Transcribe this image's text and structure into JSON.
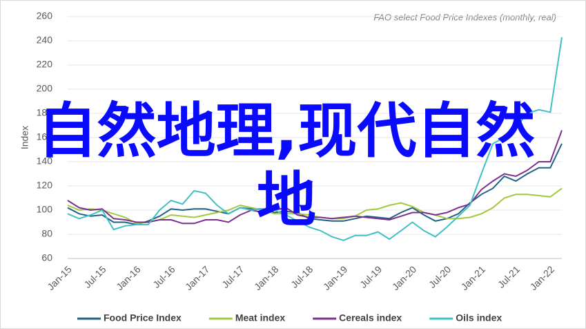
{
  "chart_data": {
    "type": "line",
    "title": "FAO select Food Price Indexes (monthly, real)",
    "y_label": "Index",
    "categories": [
      "Jan-15",
      null,
      null,
      "Jul-15",
      null,
      null,
      "Jan-16",
      null,
      null,
      "Jul-16",
      null,
      null,
      "Jan-17",
      null,
      null,
      "Jul-17",
      null,
      null,
      "Jan-18",
      null,
      null,
      "Jul-18",
      null,
      null,
      "Jan-19",
      null,
      null,
      "Jul-19",
      null,
      null,
      "Jan-20",
      null,
      null,
      "Jul-20",
      null,
      null,
      "Jan-21",
      null,
      null,
      "Jul-21",
      null,
      null,
      "Jan-22",
      null
    ],
    "series": [
      {
        "name": "Food Price Index",
        "color": "#1f6185",
        "values": [
          102,
          97,
          95,
          96,
          90,
          90,
          88,
          91,
          95,
          101,
          100,
          101,
          101,
          99,
          97,
          102,
          101,
          101,
          98,
          99,
          98,
          93,
          92,
          91,
          91,
          93,
          95,
          94,
          93,
          98,
          102,
          96,
          91,
          93,
          97,
          106,
          113,
          118,
          128,
          124,
          130,
          135,
          135,
          155
        ]
      },
      {
        "name": "Meat index",
        "color": "#a2c83c",
        "values": [
          104,
          100,
          101,
          100,
          97,
          94,
          89,
          90,
          92,
          96,
          95,
          94,
          96,
          98,
          100,
          104,
          102,
          100,
          97,
          97,
          97,
          96,
          94,
          93,
          93,
          95,
          100,
          101,
          104,
          106,
          103,
          98,
          96,
          93,
          93,
          94,
          97,
          102,
          110,
          113,
          113,
          112,
          111,
          118
        ]
      },
      {
        "name": "Cereals index",
        "color": "#7d2f8f",
        "values": [
          108,
          102,
          100,
          101,
          93,
          92,
          90,
          90,
          92,
          92,
          89,
          89,
          92,
          92,
          90,
          96,
          100,
          98,
          100,
          102,
          96,
          94,
          94,
          93,
          94,
          95,
          94,
          93,
          92,
          95,
          98,
          98,
          96,
          98,
          102,
          105,
          117,
          124,
          130,
          128,
          133,
          140,
          140,
          166
        ]
      },
      {
        "name": "Oils index",
        "color": "#3fc0c3",
        "values": [
          97,
          93,
          96,
          100,
          84,
          87,
          88,
          88,
          100,
          108,
          105,
          116,
          114,
          104,
          97,
          102,
          100,
          101,
          100,
          96,
          91,
          86,
          83,
          78,
          75,
          79,
          79,
          82,
          76,
          83,
          90,
          83,
          78,
          86,
          95,
          104,
          130,
          155,
          160,
          168,
          180,
          183,
          181,
          243
        ]
      }
    ],
    "ylim": [
      60,
      260
    ],
    "yticks": [
      60,
      80,
      100,
      120,
      140,
      160,
      180,
      200,
      220,
      240,
      260
    ],
    "grid": true,
    "legend": "bottom"
  },
  "overlay_text": "自然地理,现代自然地"
}
